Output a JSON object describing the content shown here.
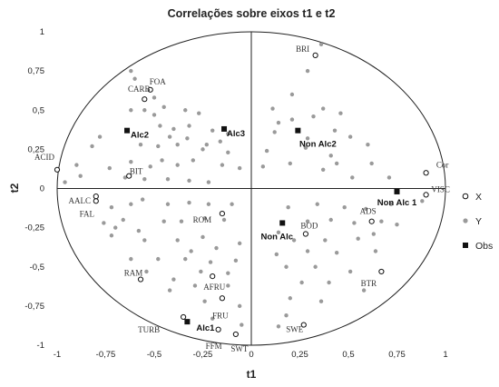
{
  "chart_data": {
    "type": "scatter",
    "title": "Correlações sobre eixos t1 e t2",
    "xlabel": "t1",
    "ylabel": "t2",
    "xlim": [
      -1,
      1
    ],
    "ylim": [
      -1,
      1
    ],
    "xticks": [
      "-1",
      "-0,75",
      "-0,5",
      "-0,25",
      "0",
      "0,25",
      "0,5",
      "0,75",
      "1"
    ],
    "yticks": [
      "-1",
      "-0,75",
      "-0,5",
      "-0,25",
      "0",
      "0,25",
      "0,5",
      "0,75",
      "1"
    ],
    "tick_values": [
      -1,
      -0.75,
      -0.5,
      -0.25,
      0,
      0.25,
      0.5,
      0.75,
      1
    ],
    "unit_circle": true,
    "legend": {
      "position": "right",
      "entries": [
        {
          "name": "X",
          "marker": "open-circle"
        },
        {
          "name": "Y",
          "marker": "grey-dot"
        },
        {
          "name": "Obs",
          "marker": "black-square"
        }
      ]
    },
    "series": [
      {
        "name": "X",
        "points": [
          {
            "label": "BRI",
            "x": 0.33,
            "y": 0.85
          },
          {
            "label": "FOA",
            "x": -0.52,
            "y": 0.63
          },
          {
            "label": "CARB",
            "x": -0.55,
            "y": 0.57
          },
          {
            "label": "ACID",
            "x": -1.0,
            "y": 0.12
          },
          {
            "label": "BIT",
            "x": -0.63,
            "y": 0.08
          },
          {
            "label": "AALC",
            "x": -0.8,
            "y": -0.05
          },
          {
            "label": "FAL",
            "x": -0.8,
            "y": -0.08
          },
          {
            "label": "Cor",
            "x": 0.9,
            "y": 0.1
          },
          {
            "label": "VISC",
            "x": 0.9,
            "y": -0.04
          },
          {
            "label": "ADS",
            "x": 0.62,
            "y": -0.21
          },
          {
            "label": "BOD",
            "x": 0.28,
            "y": -0.29
          },
          {
            "label": "ROM",
            "x": -0.15,
            "y": -0.16
          },
          {
            "label": "RAM",
            "x": -0.57,
            "y": -0.58
          },
          {
            "label": "AFRU",
            "x": -0.2,
            "y": -0.56
          },
          {
            "label": "FRU",
            "x": -0.15,
            "y": -0.7
          },
          {
            "label": "BTR",
            "x": 0.67,
            "y": -0.53
          },
          {
            "label": "SWE",
            "x": 0.27,
            "y": -0.87
          },
          {
            "label": "TURB",
            "x": -0.35,
            "y": -0.82
          },
          {
            "label": "FFM",
            "x": -0.17,
            "y": -0.9
          },
          {
            "label": "SWT",
            "x": -0.08,
            "y": -0.93
          }
        ]
      },
      {
        "name": "Y",
        "points": [
          [
            0.36,
            0.92
          ],
          [
            0.29,
            0.75
          ],
          [
            0.21,
            0.6
          ],
          [
            0.37,
            0.51
          ],
          [
            0.11,
            0.51
          ],
          [
            0.32,
            0.46
          ],
          [
            0.46,
            0.48
          ],
          [
            0.21,
            0.44
          ],
          [
            0.14,
            0.42
          ],
          [
            0.43,
            0.37
          ],
          [
            0.51,
            0.33
          ],
          [
            0.12,
            0.36
          ],
          [
            0.29,
            0.32
          ],
          [
            0.6,
            0.28
          ],
          [
            0.28,
            0.26
          ],
          [
            0.08,
            0.24
          ],
          [
            0.41,
            0.21
          ],
          [
            0.44,
            0.16
          ],
          [
            0.62,
            0.16
          ],
          [
            0.2,
            0.16
          ],
          [
            0.06,
            0.14
          ],
          [
            0.37,
            0.12
          ],
          [
            0.52,
            0.07
          ],
          [
            0.71,
            0.07
          ],
          [
            -0.62,
            0.75
          ],
          [
            -0.6,
            0.7
          ],
          [
            -0.5,
            0.58
          ],
          [
            -0.62,
            0.5
          ],
          [
            -0.55,
            0.5
          ],
          [
            -0.5,
            0.47
          ],
          [
            -0.45,
            0.52
          ],
          [
            -0.34,
            0.5
          ],
          [
            -0.27,
            0.48
          ],
          [
            -0.47,
            0.4
          ],
          [
            -0.4,
            0.38
          ],
          [
            -0.32,
            0.4
          ],
          [
            -0.2,
            0.37
          ],
          [
            -0.12,
            0.35
          ],
          [
            -0.42,
            0.33
          ],
          [
            -0.33,
            0.32
          ],
          [
            -0.23,
            0.28
          ],
          [
            -0.16,
            0.3
          ],
          [
            -0.78,
            0.33
          ],
          [
            -0.82,
            0.27
          ],
          [
            -0.57,
            0.28
          ],
          [
            -0.48,
            0.27
          ],
          [
            -0.38,
            0.28
          ],
          [
            -0.25,
            0.25
          ],
          [
            -0.12,
            0.23
          ],
          [
            -0.9,
            0.15
          ],
          [
            -0.73,
            0.13
          ],
          [
            -0.62,
            0.17
          ],
          [
            -0.52,
            0.14
          ],
          [
            -0.46,
            0.18
          ],
          [
            -0.38,
            0.15
          ],
          [
            -0.3,
            0.18
          ],
          [
            -0.15,
            0.15
          ],
          [
            -0.06,
            0.13
          ],
          [
            -0.96,
            0.04
          ],
          [
            -0.88,
            0.08
          ],
          [
            -0.65,
            0.07
          ],
          [
            -0.55,
            0.06
          ],
          [
            -0.43,
            0.06
          ],
          [
            -0.32,
            0.05
          ],
          [
            -0.22,
            0.04
          ],
          [
            -0.72,
            -0.12
          ],
          [
            -0.62,
            -0.1
          ],
          [
            -0.56,
            -0.07
          ],
          [
            -0.43,
            -0.1
          ],
          [
            -0.32,
            -0.09
          ],
          [
            -0.22,
            -0.1
          ],
          [
            -0.1,
            -0.1
          ],
          [
            -0.76,
            -0.22
          ],
          [
            -0.7,
            -0.25
          ],
          [
            -0.66,
            -0.2
          ],
          [
            -0.58,
            -0.27
          ],
          [
            -0.45,
            -0.21
          ],
          [
            -0.36,
            -0.21
          ],
          [
            -0.24,
            -0.19
          ],
          [
            -0.14,
            -0.2
          ],
          [
            -0.72,
            -0.3
          ],
          [
            -0.55,
            -0.33
          ],
          [
            -0.38,
            -0.33
          ],
          [
            -0.25,
            -0.31
          ],
          [
            -0.31,
            -0.4
          ],
          [
            -0.18,
            -0.38
          ],
          [
            -0.06,
            -0.35
          ],
          [
            -0.62,
            -0.45
          ],
          [
            -0.48,
            -0.45
          ],
          [
            -0.34,
            -0.45
          ],
          [
            -0.21,
            -0.47
          ],
          [
            -0.08,
            -0.46
          ],
          [
            -0.54,
            -0.53
          ],
          [
            -0.4,
            -0.58
          ],
          [
            -0.26,
            -0.53
          ],
          [
            -0.12,
            -0.54
          ],
          [
            -0.42,
            -0.65
          ],
          [
            -0.29,
            -0.62
          ],
          [
            -0.12,
            -0.62
          ],
          [
            -0.24,
            -0.72
          ],
          [
            -0.06,
            -0.75
          ],
          [
            -0.2,
            -0.83
          ],
          [
            -0.05,
            -0.87
          ],
          [
            0.19,
            -0.12
          ],
          [
            0.34,
            -0.1
          ],
          [
            0.48,
            -0.12
          ],
          [
            0.59,
            -0.13
          ],
          [
            0.72,
            -0.1
          ],
          [
            0.88,
            -0.08
          ],
          [
            0.29,
            -0.21
          ],
          [
            0.41,
            -0.2
          ],
          [
            0.53,
            -0.22
          ],
          [
            0.67,
            -0.21
          ],
          [
            0.75,
            -0.23
          ],
          [
            0.14,
            -0.28
          ],
          [
            0.22,
            -0.33
          ],
          [
            0.38,
            -0.33
          ],
          [
            0.55,
            -0.32
          ],
          [
            0.63,
            -0.29
          ],
          [
            0.13,
            -0.42
          ],
          [
            0.29,
            -0.4
          ],
          [
            0.44,
            -0.41
          ],
          [
            0.64,
            -0.4
          ],
          [
            0.18,
            -0.5
          ],
          [
            0.33,
            -0.5
          ],
          [
            0.51,
            -0.53
          ],
          [
            0.26,
            -0.6
          ],
          [
            0.4,
            -0.6
          ],
          [
            0.58,
            -0.65
          ],
          [
            0.2,
            -0.7
          ],
          [
            0.36,
            -0.72
          ],
          [
            0.18,
            -0.81
          ],
          [
            0.14,
            -0.88
          ]
        ]
      },
      {
        "name": "Obs",
        "points": [
          {
            "label": "Non Alc2",
            "x": 0.24,
            "y": 0.37
          },
          {
            "label": "Alc3",
            "x": -0.14,
            "y": 0.38
          },
          {
            "label": "Alc2",
            "x": -0.64,
            "y": 0.37
          },
          {
            "label": "Non Alc 1",
            "x": 0.75,
            "y": -0.02
          },
          {
            "label": "Non Alc",
            "x": 0.16,
            "y": -0.22
          },
          {
            "label": "Alc1",
            "x": -0.33,
            "y": -0.85
          }
        ]
      }
    ]
  }
}
